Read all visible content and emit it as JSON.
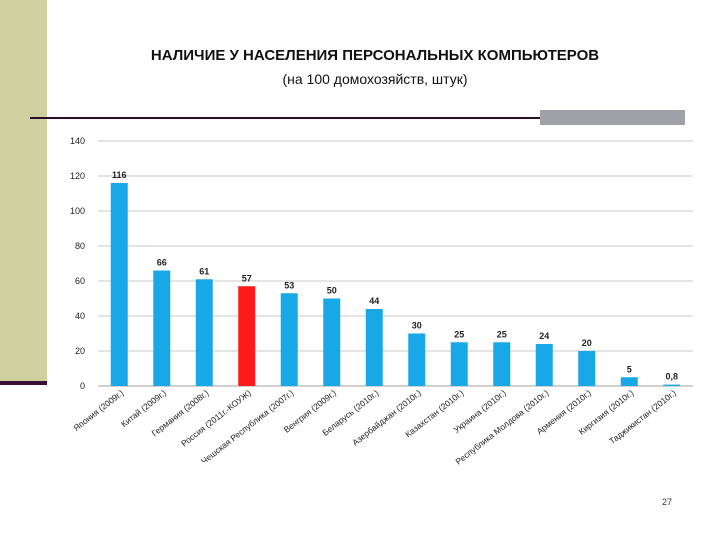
{
  "slide": {
    "title": "НАЛИЧИЕ У НАСЕЛЕНИЯ ПЕРСОНАЛЬНЫХ КОМПЬЮТЕРОВ",
    "subtitle": "(на 100 домохозяйств, штук)",
    "page_number": "27"
  },
  "chart_data": {
    "type": "bar",
    "categories": [
      "Япония (2009г.)",
      "Китай (2009г.)",
      "Германия (2008г.)",
      "Россия (2011г.-КОУЖ)",
      "Чешская Республика (2007г.)",
      "Венгрия (2009г.)",
      "Беларусь (2010г.)",
      "Азербайджан (2010г.)",
      "Казахстан (2010г.)",
      "Украина (2010г.)",
      "Республика Молдова (2010г.)",
      "Армения (2010г.)",
      "Киргизия (2010г.)",
      "Таджикистан (2010г.)"
    ],
    "values": [
      116,
      66,
      61,
      57,
      53,
      50,
      44,
      30,
      25,
      25,
      24,
      20,
      5,
      0.8
    ],
    "value_labels": [
      "116",
      "66",
      "61",
      "57",
      "53",
      "50",
      "44",
      "30",
      "25",
      "25",
      "24",
      "20",
      "5",
      "0,8"
    ],
    "highlight_index": 3,
    "colors": {
      "bar": "#18a8e8",
      "highlight": "#ff1a1a",
      "grid": "#c8c8c8"
    },
    "ylim": [
      0,
      140
    ],
    "yticks": [
      0,
      20,
      40,
      60,
      80,
      100,
      120,
      140
    ],
    "grid": true
  }
}
